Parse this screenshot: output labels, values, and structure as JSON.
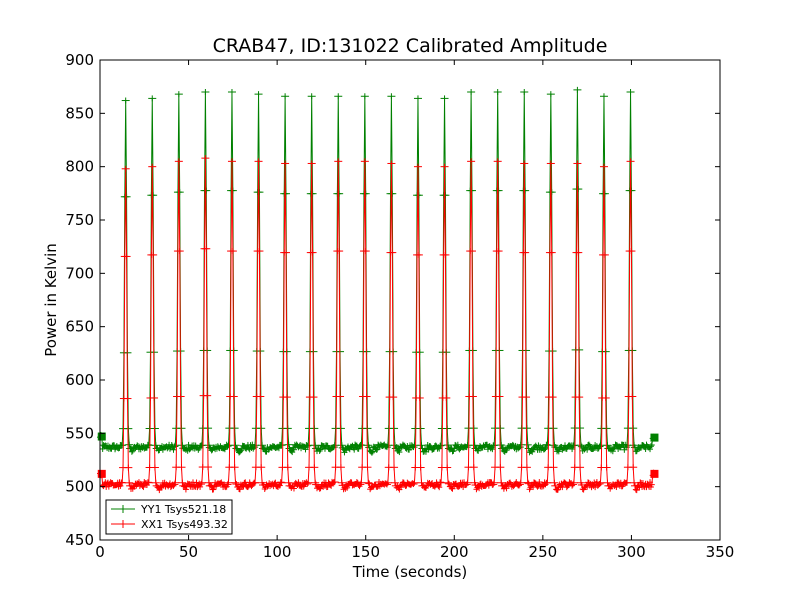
{
  "chart_data": {
    "type": "line",
    "title": "CRAB47, ID:131022 Calibrated Amplitude",
    "xlabel": "Time (seconds)",
    "ylabel": "Power in Kelvin",
    "xlim": [
      0,
      350
    ],
    "ylim": [
      450,
      900
    ],
    "xticks": [
      0,
      50,
      100,
      150,
      200,
      250,
      300,
      350
    ],
    "yticks": [
      450,
      500,
      550,
      600,
      650,
      700,
      750,
      800,
      850,
      900
    ],
    "grid": false,
    "legend_position": "lower-left",
    "x_start": 0,
    "x_end": 313,
    "peak_times": [
      14.5,
      29.5,
      44.5,
      59.5,
      74.5,
      89.5,
      104.5,
      119.5,
      134.5,
      149.5,
      164.5,
      179.5,
      194.5,
      209.5,
      224.5,
      239.5,
      254.5,
      269.5,
      284.5,
      299.5
    ],
    "series": [
      {
        "name": "YY1 Tsys521.18",
        "color": "#008000",
        "baseline": 537,
        "edge_values": [
          547,
          546
        ],
        "peaks": [
          862,
          864,
          868,
          870,
          870,
          868,
          866,
          866,
          866,
          866,
          866,
          864,
          864,
          870,
          870,
          870,
          868,
          872,
          866,
          870
        ]
      },
      {
        "name": "XX1 Tsys493.32",
        "color": "#ff0000",
        "baseline": 502,
        "edge_values": [
          512,
          512
        ],
        "peaks": [
          798,
          800,
          805,
          808,
          805,
          805,
          803,
          803,
          805,
          805,
          803,
          800,
          800,
          805,
          805,
          803,
          803,
          803,
          800,
          805
        ]
      }
    ]
  }
}
